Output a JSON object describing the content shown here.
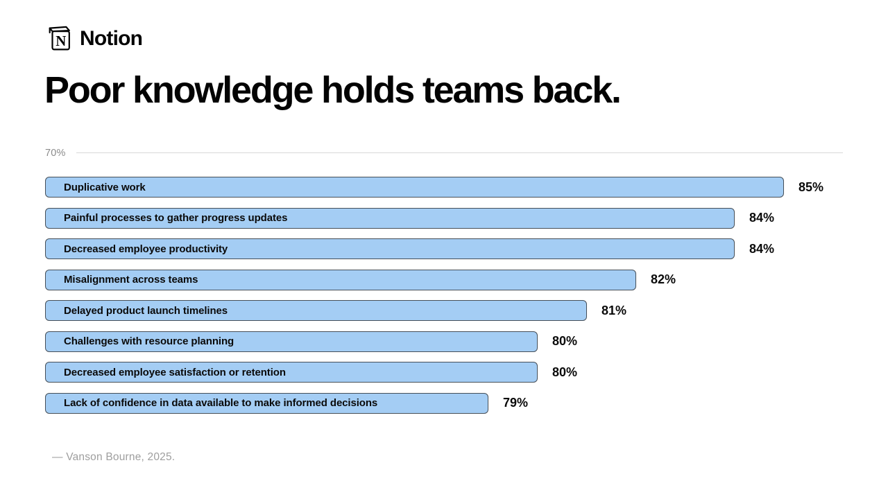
{
  "brand": {
    "icon": "notion-cube-icon",
    "name": "Notion"
  },
  "title": "Poor knowledge holds teams back.",
  "chart_data": {
    "type": "bar",
    "orientation": "horizontal",
    "title": "Poor knowledge holds teams back.",
    "categories": [
      "Duplicative work",
      "Painful processes to gather progress updates",
      "Decreased employee productivity",
      "Misalignment across teams",
      "Delayed product launch timelines",
      "Challenges with resource planning",
      "Decreased employee satisfaction or retention",
      "Lack of confidence in data available to make informed decisions"
    ],
    "values": [
      85,
      84,
      84,
      82,
      81,
      80,
      80,
      79
    ],
    "value_labels": [
      "85%",
      "84%",
      "84%",
      "82%",
      "81%",
      "80%",
      "80%",
      "79%"
    ],
    "value_suffix": "%",
    "axis_tick_label": "70%",
    "axis_baseline": 70,
    "xlim": [
      70,
      86.5
    ],
    "grid": false,
    "legend": "none",
    "bar_fill": "#A4CDF4",
    "bar_border": "#454E57"
  },
  "footer": {
    "source": "— Vanson Bourne, 2025."
  }
}
